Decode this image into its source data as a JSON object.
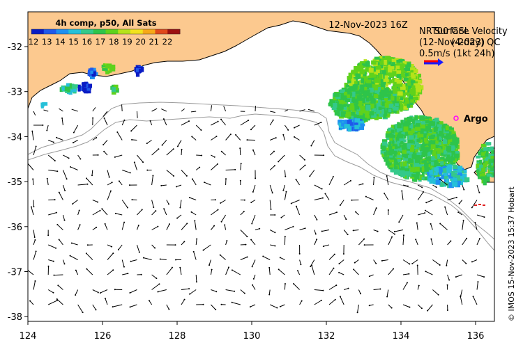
{
  "map": {
    "timestamp": "12-Nov-2023 16Z",
    "lon_ticks": [
      "124",
      "126",
      "128",
      "130",
      "132",
      "134",
      "136"
    ],
    "lat_ticks": [
      "-32",
      "-33",
      "-34",
      "-35",
      "-36",
      "-37",
      "-38"
    ],
    "lon_range": [
      124,
      136.5
    ],
    "lat_range": [
      -38.1,
      -31.3
    ]
  },
  "colorbar": {
    "title": "4h comp, p50, All Sats",
    "labels": [
      "12",
      "13",
      "14",
      "15",
      "16",
      "17",
      "18",
      "19",
      "20",
      "21",
      "22"
    ],
    "colors": [
      "#0a1cc4",
      "#1f58ea",
      "#1e90f0",
      "#25c0d8",
      "#34c98a",
      "#2ec44a",
      "#5fd21c",
      "#b6e21a",
      "#f2e21e",
      "#f6a818",
      "#e0481a",
      "#9c1010"
    ]
  },
  "legend": {
    "line1": "NRT00 GSL",
    "line2": "(12-Nov-2023)",
    "line1b": "Surface Velocity",
    "line2b": "(4-day) QC",
    "scale": "0.5m/s (1kt 24h)",
    "arrow_colors": [
      "#ff0000",
      "#1a1aff"
    ]
  },
  "argo": {
    "label": "Argo",
    "marker_color": "#ff00ff"
  },
  "colors": {
    "land": "#fcc98f",
    "ocean": "#ffffff",
    "isobath": "#9a9a9a"
  },
  "credit": "© IMOS 15-Nov-2023 15:37 Hobart"
}
